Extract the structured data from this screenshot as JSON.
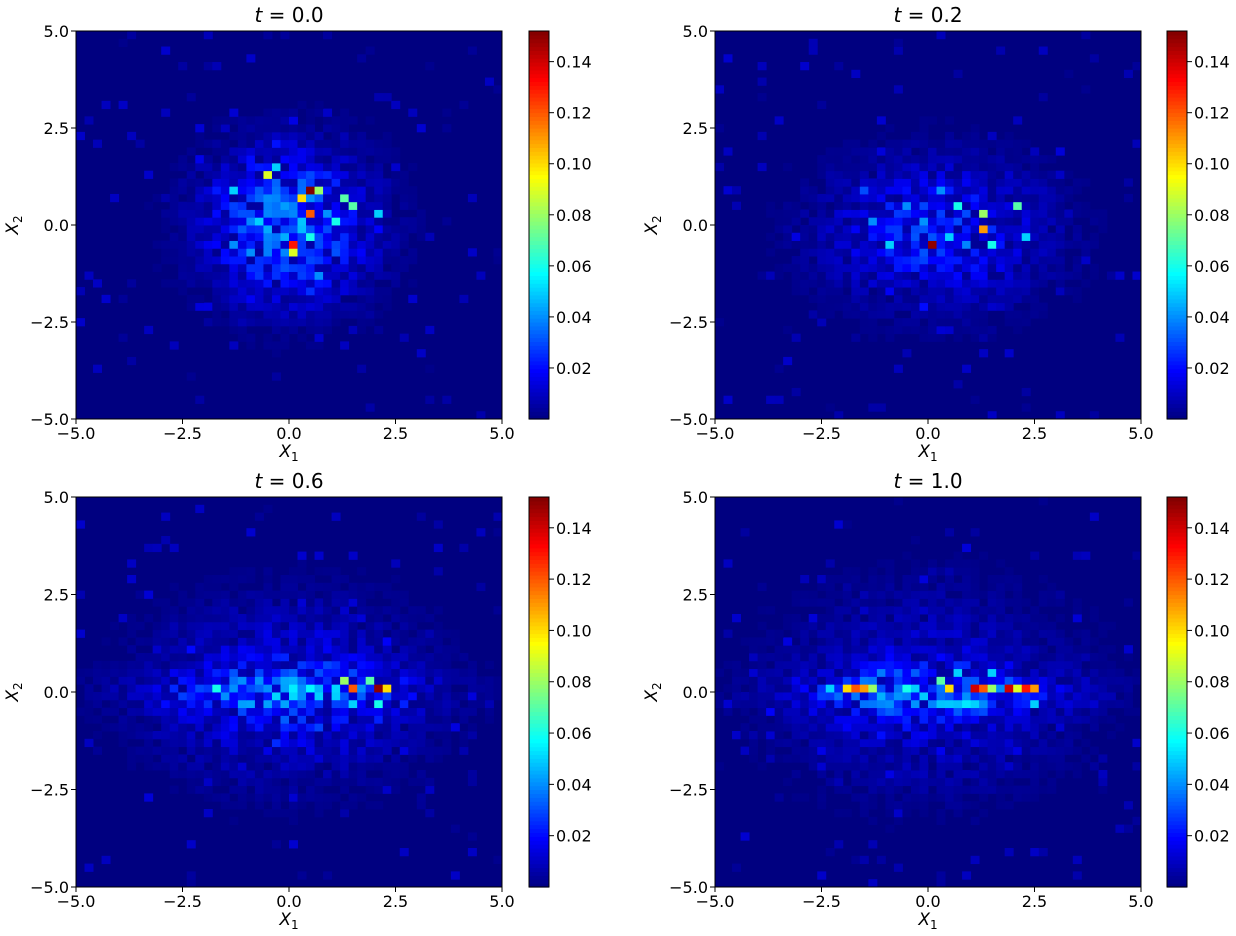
{
  "chart_data": [
    {
      "type": "heatmap",
      "title": "t = 0.0",
      "title_t": "0.0",
      "xlabel": "X_1",
      "ylabel": "X_2",
      "xlim": [
        -5.0,
        5.0
      ],
      "ylim": [
        -5.0,
        5.0
      ],
      "xticks": [
        "−5.0",
        "−2.5",
        "0.0",
        "2.5",
        "5.0"
      ],
      "yticks": [
        "−5.0",
        "−2.5",
        "0.0",
        "2.5",
        "5.0"
      ],
      "colormap": "jet",
      "colorbar_range": [
        0.0,
        0.152
      ],
      "colorbar_ticks": [
        "0.02",
        "0.04",
        "0.06",
        "0.08",
        "0.10",
        "0.12",
        "0.14"
      ],
      "grid": false,
      "bins": 50,
      "hotspots": [
        {
          "x": 0.4,
          "y": 0.9,
          "value": 0.152
        },
        {
          "x": 0.0,
          "y": -0.5,
          "value": 0.13
        },
        {
          "x": 0.4,
          "y": 0.3,
          "value": 0.12
        },
        {
          "x": 0.2,
          "y": 0.7,
          "value": 0.1
        },
        {
          "x": -0.6,
          "y": 1.3,
          "value": 0.09
        },
        {
          "x": 0.0,
          "y": -0.8,
          "value": 0.09
        },
        {
          "x": 0.8,
          "y": 0.9,
          "value": 0.08
        },
        {
          "x": 1.2,
          "y": 0.7,
          "value": 0.07
        },
        {
          "x": 1.6,
          "y": 0.5,
          "value": 0.07
        },
        {
          "x": 1.0,
          "y": 0.1,
          "value": 0.06
        },
        {
          "x": 0.6,
          "y": -0.3,
          "value": 0.06
        },
        {
          "x": -1.2,
          "y": 0.9,
          "value": 0.05
        },
        {
          "x": -0.8,
          "y": 0.1,
          "value": 0.05
        },
        {
          "x": -1.4,
          "y": -0.5,
          "value": 0.04
        },
        {
          "x": 2.0,
          "y": 0.3,
          "value": 0.05
        },
        {
          "x": 0.8,
          "y": -1.3,
          "value": 0.04
        },
        {
          "x": -0.2,
          "y": 1.5,
          "value": 0.05
        }
      ]
    },
    {
      "type": "heatmap",
      "title": "t = 0.2",
      "title_t": "0.2",
      "xlabel": "X_1",
      "ylabel": "X_2",
      "xlim": [
        -5.0,
        5.0
      ],
      "ylim": [
        -5.0,
        5.0
      ],
      "xticks": [
        "−5.0",
        "−2.5",
        "0.0",
        "2.5",
        "5.0"
      ],
      "yticks": [
        "−5.0",
        "−2.5",
        "0.0",
        "2.5",
        "5.0"
      ],
      "colormap": "jet",
      "colorbar_range": [
        0.0,
        0.152
      ],
      "colorbar_ticks": [
        "0.02",
        "0.04",
        "0.06",
        "0.08",
        "0.10",
        "0.12",
        "0.14"
      ],
      "grid": false,
      "bins": 50,
      "hotspots": [
        {
          "x": 0.0,
          "y": -0.5,
          "value": 0.15
        },
        {
          "x": 1.2,
          "y": -0.1,
          "value": 0.11
        },
        {
          "x": 1.2,
          "y": 0.3,
          "value": 0.08
        },
        {
          "x": 2.0,
          "y": 0.5,
          "value": 0.07
        },
        {
          "x": 0.8,
          "y": 0.5,
          "value": 0.06
        },
        {
          "x": 1.6,
          "y": -0.5,
          "value": 0.06
        },
        {
          "x": 2.2,
          "y": -0.3,
          "value": 0.05
        },
        {
          "x": 0.4,
          "y": -0.3,
          "value": 0.05
        },
        {
          "x": -1.0,
          "y": -0.5,
          "value": 0.05
        },
        {
          "x": -1.4,
          "y": 0.1,
          "value": 0.04
        },
        {
          "x": 0.2,
          "y": 0.9,
          "value": 0.04
        },
        {
          "x": -0.6,
          "y": 0.5,
          "value": 0.04
        },
        {
          "x": -1.6,
          "y": 0.9,
          "value": 0.03
        }
      ]
    },
    {
      "type": "heatmap",
      "title": "t = 0.6",
      "title_t": "0.6",
      "xlabel": "X_1",
      "ylabel": "X_2",
      "xlim": [
        -5.0,
        5.0
      ],
      "ylim": [
        -5.0,
        5.0
      ],
      "xticks": [
        "−5.0",
        "−2.5",
        "0.0",
        "2.5",
        "5.0"
      ],
      "yticks": [
        "−5.0",
        "−2.5",
        "0.0",
        "2.5",
        "5.0"
      ],
      "colormap": "jet",
      "colorbar_range": [
        0.0,
        0.152
      ],
      "colorbar_ticks": [
        "0.02",
        "0.04",
        "0.06",
        "0.08",
        "0.10",
        "0.12",
        "0.14"
      ],
      "grid": false,
      "bins": 50,
      "hotspots": [
        {
          "x": 2.0,
          "y": 0.1,
          "value": 0.15
        },
        {
          "x": 1.6,
          "y": 0.1,
          "value": 0.12
        },
        {
          "x": 2.2,
          "y": 0.1,
          "value": 0.1
        },
        {
          "x": 1.2,
          "y": 0.3,
          "value": 0.08
        },
        {
          "x": 1.8,
          "y": 0.3,
          "value": 0.07
        },
        {
          "x": 2.0,
          "y": -0.3,
          "value": 0.06
        },
        {
          "x": 1.4,
          "y": -0.3,
          "value": 0.05
        },
        {
          "x": -1.8,
          "y": 0.1,
          "value": 0.06
        },
        {
          "x": -1.2,
          "y": 0.1,
          "value": 0.04
        },
        {
          "x": -0.6,
          "y": 0.1,
          "value": 0.04
        },
        {
          "x": 0.2,
          "y": 0.1,
          "value": 0.04
        },
        {
          "x": 0.8,
          "y": 0.5,
          "value": 0.03
        }
      ]
    },
    {
      "type": "heatmap",
      "title": "t = 1.0",
      "title_t": "1.0",
      "xlabel": "X_1",
      "ylabel": "X_2",
      "xlim": [
        -5.0,
        5.0
      ],
      "ylim": [
        -5.0,
        5.0
      ],
      "xticks": [
        "−5.0",
        "−2.5",
        "0.0",
        "2.5",
        "5.0"
      ],
      "yticks": [
        "−5.0",
        "−2.5",
        "0.0",
        "2.5",
        "5.0"
      ],
      "colormap": "jet",
      "colorbar_range": [
        0.0,
        0.152
      ],
      "colorbar_ticks": [
        "0.02",
        "0.04",
        "0.06",
        "0.08",
        "0.10",
        "0.12",
        "0.14"
      ],
      "grid": false,
      "bins": 50,
      "hotspots": [
        {
          "x": 1.0,
          "y": 0.1,
          "value": 0.14
        },
        {
          "x": 1.6,
          "y": 0.1,
          "value": 0.14
        },
        {
          "x": 1.8,
          "y": 0.1,
          "value": 0.14
        },
        {
          "x": 2.2,
          "y": 0.1,
          "value": 0.13
        },
        {
          "x": 1.2,
          "y": 0.1,
          "value": 0.12
        },
        {
          "x": 2.6,
          "y": 0.1,
          "value": 0.11
        },
        {
          "x": -1.8,
          "y": 0.1,
          "value": 0.12
        },
        {
          "x": -1.6,
          "y": 0.1,
          "value": 0.11
        },
        {
          "x": -2.0,
          "y": 0.1,
          "value": 0.1
        },
        {
          "x": 0.6,
          "y": 0.1,
          "value": 0.1
        },
        {
          "x": -1.2,
          "y": 0.1,
          "value": 0.08
        },
        {
          "x": 2.0,
          "y": 0.1,
          "value": 0.09
        },
        {
          "x": 1.4,
          "y": 0.1,
          "value": 0.08
        },
        {
          "x": 0.2,
          "y": 0.3,
          "value": 0.07
        },
        {
          "x": -0.6,
          "y": 0.1,
          "value": 0.06
        },
        {
          "x": 1.0,
          "y": -0.3,
          "value": 0.05
        },
        {
          "x": 2.4,
          "y": -0.3,
          "value": 0.05
        },
        {
          "x": -2.4,
          "y": 0.1,
          "value": 0.05
        },
        {
          "x": 0.8,
          "y": 0.5,
          "value": 0.05
        },
        {
          "x": 1.6,
          "y": 0.5,
          "value": 0.05
        }
      ]
    }
  ]
}
